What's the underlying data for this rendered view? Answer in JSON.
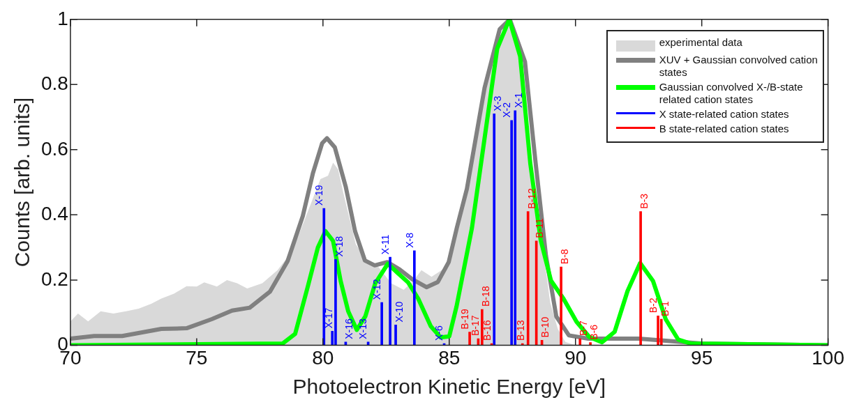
{
  "chart_data": {
    "type": "line",
    "xlabel": "Photoelectron Kinetic Energy [eV]",
    "ylabel": "Counts [arb. units]",
    "xlim": [
      70,
      100
    ],
    "xticks": [
      70,
      75,
      80,
      85,
      90,
      95,
      100
    ],
    "ylim": [
      0,
      1
    ],
    "yticks": [
      0,
      0.2,
      0.4,
      0.6,
      0.8,
      1
    ],
    "legend": "top right",
    "series": [
      {
        "name": "experimental data",
        "type": "area",
        "color": "#d9d9d9",
        "x": [
          70,
          70.3,
          70.7,
          71.2,
          71.7,
          72.2,
          72.7,
          73.2,
          73.6,
          74.1,
          74.6,
          75.0,
          75.3,
          75.8,
          76.2,
          76.6,
          77.0,
          77.6,
          78.2,
          78.8,
          79.3,
          79.9,
          80.2,
          80.4,
          80.6,
          80.8,
          81.3,
          81.8,
          82.2,
          82.7,
          83.2,
          83.6,
          83.9,
          84.3,
          84.7,
          85.0,
          85.5,
          86.0,
          86.5,
          87.0,
          87.4,
          87.8,
          88.2,
          88.6,
          89.0,
          89.3,
          89.6,
          90.0,
          100
        ],
        "values": [
          0.073,
          0.097,
          0.073,
          0.104,
          0.097,
          0.104,
          0.112,
          0.127,
          0.143,
          0.158,
          0.181,
          0.18,
          0.193,
          0.18,
          0.2,
          0.19,
          0.174,
          0.19,
          0.23,
          0.29,
          0.39,
          0.51,
          0.52,
          0.56,
          0.54,
          0.47,
          0.31,
          0.25,
          0.24,
          0.19,
          0.17,
          0.2,
          0.23,
          0.21,
          0.23,
          0.25,
          0.42,
          0.62,
          0.82,
          0.95,
          0.98,
          0.87,
          0.6,
          0.36,
          0.13,
          0.05,
          0.01,
          0,
          0
        ]
      },
      {
        "name": "XUV + Gaussian convolved cation states",
        "color": "#808080",
        "x": [
          70,
          70.94,
          72.05,
          73.6,
          74.6,
          75.6,
          76.4,
          77.1,
          77.9,
          78.6,
          79.2,
          79.6,
          79.97,
          80.16,
          80.47,
          80.9,
          81.27,
          81.66,
          82.05,
          82.55,
          83.04,
          83.54,
          84.1,
          84.55,
          84.98,
          85.3,
          85.7,
          86.4,
          87.0,
          87.4,
          88.0,
          88.42,
          88.83,
          89.24,
          89.74,
          90.5,
          92.5,
          95,
          100
        ],
        "values": [
          0.02,
          0.028,
          0.028,
          0.05,
          0.052,
          0.08,
          0.106,
          0.115,
          0.164,
          0.258,
          0.396,
          0.527,
          0.62,
          0.635,
          0.607,
          0.487,
          0.35,
          0.26,
          0.245,
          0.255,
          0.232,
          0.202,
          0.178,
          0.194,
          0.255,
          0.36,
          0.48,
          0.79,
          0.97,
          1.0,
          0.87,
          0.56,
          0.275,
          0.088,
          0.03,
          0.02,
          0.02,
          0.005,
          0
        ]
      },
      {
        "name": "Gaussian convolved X-/B-state related cation states",
        "color": "#00ff00",
        "x": [
          70,
          78.4,
          78.9,
          79.4,
          79.8,
          80.1,
          80.4,
          80.7,
          81.0,
          81.34,
          81.68,
          82.07,
          82.57,
          82.98,
          83.37,
          83.77,
          84.27,
          84.66,
          85.0,
          85.29,
          85.9,
          86.4,
          86.9,
          87.38,
          87.81,
          88.21,
          88.62,
          89.03,
          89.53,
          90.04,
          90.55,
          91.05,
          91.55,
          92.06,
          92.56,
          93.07,
          93.57,
          94.07,
          94.57,
          100
        ],
        "values": [
          0,
          0.005,
          0.035,
          0.18,
          0.3,
          0.35,
          0.32,
          0.197,
          0.104,
          0.047,
          0.089,
          0.19,
          0.25,
          0.22,
          0.193,
          0.143,
          0.058,
          0.024,
          0.027,
          0.119,
          0.36,
          0.635,
          0.91,
          1.0,
          0.886,
          0.558,
          0.323,
          0.198,
          0.142,
          0.072,
          0.025,
          0.009,
          0.041,
          0.166,
          0.252,
          0.197,
          0.08,
          0.017,
          0.005,
          0
        ]
      },
      {
        "name": "X state-related cation states",
        "type": "bar",
        "color": "#0000ff",
        "x": [
          80.04,
          80.37,
          80.5,
          80.9,
          81.79,
          82.33,
          82.66,
          82.88,
          83.62,
          84.8,
          86.78,
          87.47,
          87.61
        ],
        "values": [
          0.42,
          0.043,
          0.263,
          0.01,
          0.01,
          0.131,
          0.27,
          0.062,
          0.29,
          0.005,
          0.71,
          0.69,
          0.72
        ],
        "value_labels": [
          "X-19",
          "X-17",
          "X-18",
          "X-16",
          "X-13",
          "X-12",
          "X-11",
          "X-10",
          "X-8",
          "X-6",
          "X-3",
          "X-2",
          "X-1"
        ]
      },
      {
        "name": "B state-related cation states",
        "type": "bar",
        "color": "#ff0000",
        "x": [
          85.81,
          86.15,
          86.3,
          86.68,
          87.9,
          88.12,
          88.45,
          88.67,
          89.43,
          90.18,
          90.59,
          92.58,
          93.27,
          93.4
        ],
        "values": [
          0.04,
          0.02,
          0.11,
          0.005,
          0.005,
          0.41,
          0.32,
          0.015,
          0.24,
          0.02,
          0.008,
          0.41,
          0.09,
          0.08
        ],
        "value_labels": [
          "B-19",
          "B-17",
          "B-18",
          "B-16",
          "B-13",
          "B-12",
          "B-11",
          "B-10",
          "B-8",
          "B-7",
          "B-6",
          "B-3",
          "B-2",
          "B-1"
        ]
      }
    ]
  }
}
